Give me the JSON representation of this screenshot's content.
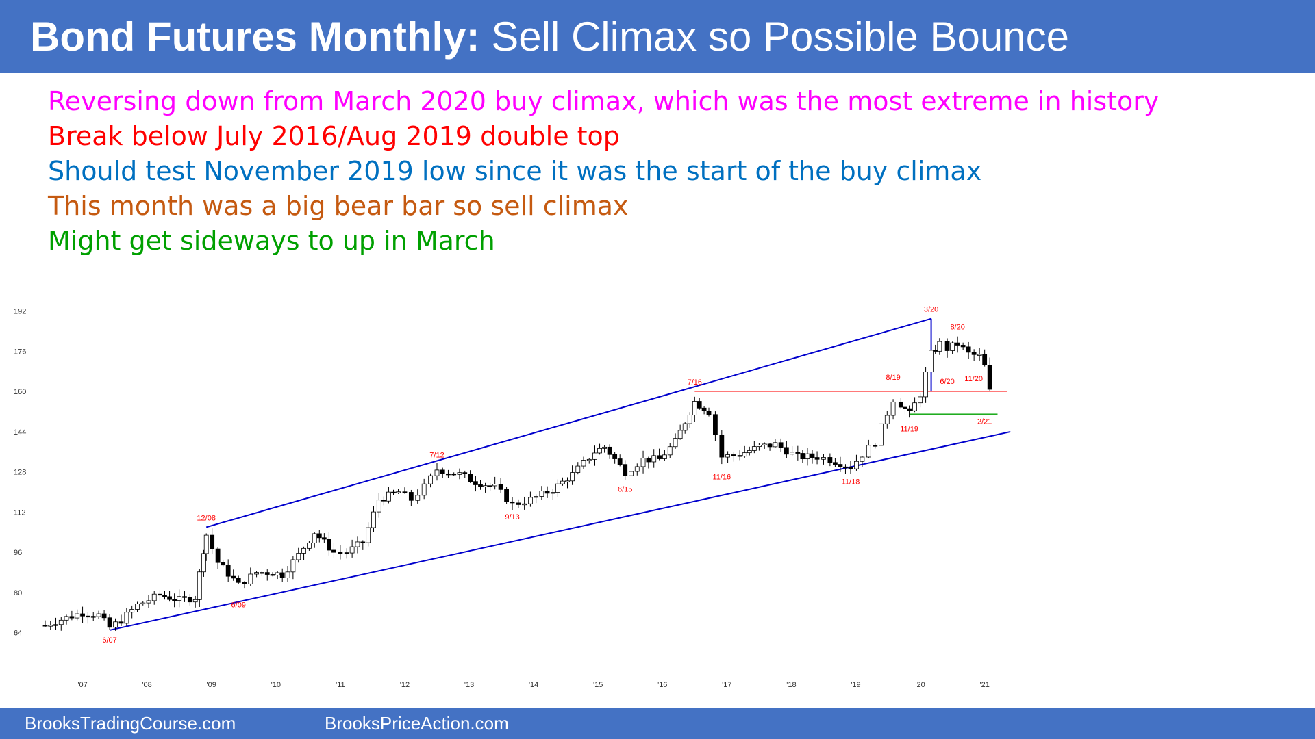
{
  "header": {
    "title_bold": "Bond Futures Monthly:",
    "title_rest": " Sell Climax so Possible Bounce",
    "bg_color": "#4472c4"
  },
  "bullets": [
    {
      "text": "Reversing down from March 2020 buy climax, which was the most extreme in history",
      "color": "#ff00ff"
    },
    {
      "text": "Break below July 2016/Aug 2019 double top",
      "color": "#ff0000"
    },
    {
      "text": "Should test November 2019 low since it was the start of the buy climax",
      "color": "#0070c0"
    },
    {
      "text": "This month was a big bear bar so sell climax",
      "color": "#c55a11"
    },
    {
      "text": "Might get sideways to up in March",
      "color": "#00a000"
    }
  ],
  "footer": {
    "left": "BrooksTradingCourse.com",
    "right": "BrooksPriceAction.com"
  },
  "chart_data": {
    "type": "candlestick",
    "y_ticks": [
      "192",
      "176",
      "160",
      "144",
      "128",
      "112",
      "96",
      "80",
      "64"
    ],
    "y_tick_values": [
      192,
      176,
      160,
      144,
      128,
      112,
      96,
      80,
      64
    ],
    "x_ticks": [
      "'07",
      "'08",
      "'09",
      "'10",
      "'11",
      "'12",
      "'13",
      "'14",
      "'15",
      "'16",
      "'17",
      "'18",
      "'19",
      "'20",
      "'21"
    ],
    "x_tick_values": [
      2007,
      2008,
      2009,
      2010,
      2011,
      2012,
      2013,
      2014,
      2015,
      2016,
      2017,
      2018,
      2019,
      2020,
      2021
    ],
    "xlim": [
      2006.25,
      2021.45
    ],
    "ylim": [
      56,
      196
    ],
    "label_color": "#ff0000",
    "annotations": [
      {
        "text": "6/07",
        "x": 2007.42,
        "y": 65,
        "pos": "below"
      },
      {
        "text": "12/08",
        "x": 2008.92,
        "y": 106,
        "pos": "above"
      },
      {
        "text": "6/09",
        "x": 2009.42,
        "y": 79,
        "pos": "below"
      },
      {
        "text": "7/12",
        "x": 2012.5,
        "y": 131,
        "pos": "above"
      },
      {
        "text": "9/13",
        "x": 2013.67,
        "y": 114,
        "pos": "below"
      },
      {
        "text": "6/15",
        "x": 2015.42,
        "y": 125,
        "pos": "below"
      },
      {
        "text": "7/16",
        "x": 2016.5,
        "y": 160,
        "pos": "above"
      },
      {
        "text": "11/16",
        "x": 2016.92,
        "y": 130,
        "pos": "below"
      },
      {
        "text": "11/18",
        "x": 2018.92,
        "y": 128,
        "pos": "below"
      },
      {
        "text": "8/19",
        "x": 2019.58,
        "y": 162,
        "pos": "above"
      },
      {
        "text": "11/19",
        "x": 2019.83,
        "y": 149,
        "pos": "below"
      },
      {
        "text": "3/20",
        "x": 2020.17,
        "y": 189,
        "pos": "above"
      },
      {
        "text": "8/20",
        "x": 2020.58,
        "y": 182,
        "pos": "above"
      },
      {
        "text": "6/20",
        "x": 2020.42,
        "y": 168,
        "pos": "below"
      },
      {
        "text": "11/20",
        "x": 2020.83,
        "y": 169,
        "pos": "below"
      },
      {
        "text": "2/21",
        "x": 2021.0,
        "y": 152,
        "pos": "below"
      }
    ],
    "channel_color": "#0000cc",
    "channel_lines": [
      {
        "x1": 2007.42,
        "y1": 65,
        "x2": 2021.4,
        "y2": 144
      },
      {
        "x1": 2008.92,
        "y1": 106,
        "x2": 2020.17,
        "y2": 189
      },
      {
        "x1": 2020.17,
        "y1": 189,
        "x2": 2020.17,
        "y2": 160
      }
    ],
    "level_lines": [
      {
        "x1": 2016.5,
        "x2": 2021.35,
        "y": 160,
        "color": "#ff6666"
      },
      {
        "x1": 2019.83,
        "x2": 2021.2,
        "y": 151,
        "color": "#00a000"
      }
    ],
    "series": [
      {
        "waypoints": [
          [
            2006.42,
            67
          ],
          [
            2006.75,
            70
          ],
          [
            2007.0,
            72
          ],
          [
            2007.25,
            71
          ],
          [
            2007.42,
            66
          ],
          [
            2007.6,
            69
          ],
          [
            2007.85,
            75
          ],
          [
            2008.2,
            79
          ],
          [
            2008.5,
            77
          ],
          [
            2008.75,
            78
          ],
          [
            2008.88,
            97
          ],
          [
            2008.92,
            103
          ],
          [
            2009.1,
            92
          ],
          [
            2009.42,
            83
          ],
          [
            2009.7,
            88
          ],
          [
            2009.95,
            88
          ],
          [
            2010.1,
            87
          ],
          [
            2010.35,
            95
          ],
          [
            2010.6,
            104
          ],
          [
            2010.9,
            96
          ],
          [
            2011.1,
            96
          ],
          [
            2011.35,
            100
          ],
          [
            2011.6,
            117
          ],
          [
            2011.9,
            120
          ],
          [
            2012.1,
            117
          ],
          [
            2012.3,
            122
          ],
          [
            2012.5,
            129
          ],
          [
            2012.85,
            127
          ],
          [
            2013.1,
            124
          ],
          [
            2013.4,
            122
          ],
          [
            2013.67,
            115
          ],
          [
            2013.95,
            117
          ],
          [
            2014.3,
            121
          ],
          [
            2014.6,
            127
          ],
          [
            2014.95,
            136
          ],
          [
            2015.1,
            138
          ],
          [
            2015.42,
            128
          ],
          [
            2015.7,
            133
          ],
          [
            2015.95,
            133
          ],
          [
            2016.2,
            140
          ],
          [
            2016.5,
            156
          ],
          [
            2016.72,
            152
          ],
          [
            2016.92,
            134
          ],
          [
            2017.2,
            135
          ],
          [
            2017.5,
            138
          ],
          [
            2017.75,
            139
          ],
          [
            2018.1,
            134
          ],
          [
            2018.4,
            134
          ],
          [
            2018.6,
            133
          ],
          [
            2018.92,
            130
          ],
          [
            2019.1,
            135
          ],
          [
            2019.3,
            140
          ],
          [
            2019.58,
            157
          ],
          [
            2019.7,
            155
          ],
          [
            2019.83,
            151
          ],
          [
            2020.0,
            159
          ],
          [
            2020.17,
            175
          ],
          [
            2020.3,
            179
          ],
          [
            2020.42,
            177
          ],
          [
            2020.58,
            179
          ],
          [
            2020.75,
            175
          ],
          [
            2020.92,
            174
          ],
          [
            2021.0,
            170
          ],
          [
            2021.08,
            160
          ]
        ]
      }
    ]
  }
}
